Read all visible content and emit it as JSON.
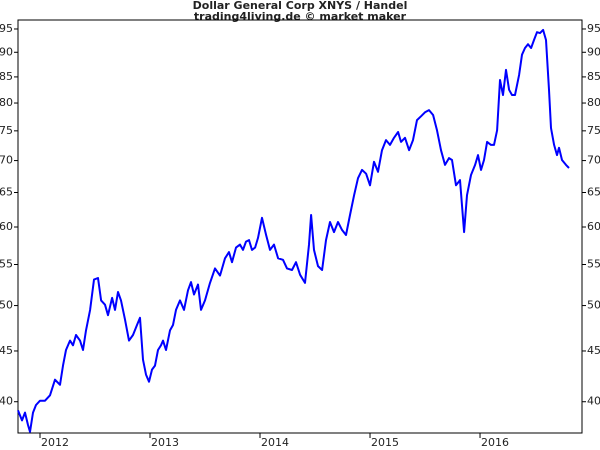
{
  "chart_data": {
    "type": "line",
    "title": "Dollar General Corp XNYS / Handel",
    "subtitle": "trading4living.de © market maker",
    "x": [
      2011.8,
      2011.836,
      2011.864,
      2011.891,
      2011.909,
      2011.936,
      2011.964,
      2012.0,
      2012.045,
      2012.091,
      2012.136,
      2012.182,
      2012.209,
      2012.236,
      2012.273,
      2012.3,
      2012.327,
      2012.364,
      2012.391,
      2012.418,
      2012.455,
      2012.491,
      2012.527,
      2012.555,
      2012.591,
      2012.618,
      2012.655,
      2012.682,
      2012.709,
      2012.736,
      2012.773,
      2012.809,
      2012.845,
      2012.882,
      2012.909,
      2012.936,
      2012.964,
      2012.991,
      2013.018,
      2013.045,
      2013.073,
      2013.1,
      2013.118,
      2013.145,
      2013.182,
      2013.209,
      2013.236,
      2013.273,
      2013.309,
      2013.345,
      2013.373,
      2013.4,
      2013.436,
      2013.464,
      2013.5,
      2013.545,
      2013.591,
      2013.636,
      2013.682,
      2013.718,
      2013.745,
      2013.782,
      2013.818,
      2013.845,
      2013.873,
      2013.9,
      2013.927,
      2013.955,
      2013.982,
      2014.018,
      2014.055,
      2014.091,
      2014.127,
      2014.164,
      2014.209,
      2014.245,
      2014.291,
      2014.327,
      2014.364,
      2014.409,
      2014.445,
      2014.464,
      2014.491,
      2014.527,
      2014.564,
      2014.6,
      2014.636,
      2014.673,
      2014.709,
      2014.745,
      2014.782,
      2014.818,
      2014.855,
      2014.891,
      2014.927,
      2014.964,
      2015.0,
      2015.036,
      2015.073,
      2015.109,
      2015.145,
      2015.182,
      2015.218,
      2015.255,
      2015.282,
      2015.318,
      2015.355,
      2015.391,
      2015.427,
      2015.464,
      2015.5,
      2015.536,
      2015.573,
      2015.609,
      2015.645,
      2015.682,
      2015.718,
      2015.745,
      2015.782,
      2015.818,
      2015.855,
      2015.882,
      2015.918,
      2015.955,
      2015.982,
      2016.009,
      2016.036,
      2016.064,
      2016.1,
      2016.127,
      2016.155,
      2016.182,
      2016.209,
      2016.236,
      2016.264,
      2016.291,
      2016.318,
      2016.355,
      2016.382,
      2016.409,
      2016.436,
      2016.464,
      2016.491,
      2016.518,
      2016.545,
      2016.573,
      2016.6,
      2016.627,
      2016.645,
      2016.673,
      2016.7,
      2016.718,
      2016.745,
      2016.782,
      2016.809
    ],
    "values": [
      39.2,
      38.3,
      39.0,
      37.9,
      37.3,
      39.0,
      39.7,
      40.1,
      40.1,
      40.6,
      42.1,
      41.6,
      43.5,
      45.1,
      46.1,
      45.6,
      46.7,
      46.1,
      45.1,
      47.2,
      49.5,
      53.1,
      53.3,
      50.6,
      50.1,
      48.9,
      50.9,
      49.5,
      51.6,
      50.6,
      48.4,
      46.1,
      46.7,
      47.8,
      48.6,
      44.1,
      42.6,
      41.9,
      43.1,
      43.5,
      45.1,
      45.6,
      46.1,
      45.1,
      47.2,
      47.8,
      49.5,
      50.6,
      49.5,
      51.8,
      52.8,
      51.3,
      52.5,
      49.5,
      50.6,
      52.7,
      54.5,
      53.6,
      55.8,
      56.6,
      55.3,
      57.2,
      57.6,
      56.9,
      58.0,
      58.2,
      56.9,
      57.2,
      58.5,
      61.3,
      58.9,
      56.9,
      57.6,
      55.8,
      55.6,
      54.5,
      54.3,
      55.3,
      53.7,
      52.7,
      57.6,
      61.7,
      56.9,
      54.8,
      54.3,
      58.2,
      60.7,
      59.3,
      60.7,
      59.6,
      58.9,
      61.7,
      64.6,
      67.2,
      68.5,
      67.9,
      66.1,
      69.8,
      68.2,
      71.7,
      73.4,
      72.6,
      73.8,
      74.8,
      73.1,
      73.8,
      71.7,
      73.4,
      76.9,
      77.6,
      78.3,
      78.7,
      77.8,
      75.1,
      71.7,
      69.3,
      70.4,
      70.1,
      66.1,
      66.9,
      59.3,
      64.6,
      67.7,
      69.3,
      70.9,
      68.5,
      70.1,
      73.1,
      72.6,
      72.6,
      75.1,
      84.4,
      81.5,
      86.4,
      82.5,
      81.5,
      81.5,
      85.4,
      89.5,
      90.9,
      91.7,
      90.9,
      92.6,
      94.3,
      94.1,
      94.8,
      92.6,
      82.5,
      75.5,
      72.6,
      70.9,
      72.1,
      70.1,
      69.3,
      68.8
    ],
    "color": "#0000ff",
    "log_scale_y": true,
    "xlim": [
      2011.8,
      2016.927
    ],
    "xticks": [
      2012,
      2013,
      2014,
      2015,
      2016
    ],
    "ylim": [
      37.2,
      97.0
    ],
    "yticks": [
      40,
      45,
      50,
      55,
      60,
      65,
      70,
      75,
      80,
      85,
      90,
      95
    ]
  }
}
